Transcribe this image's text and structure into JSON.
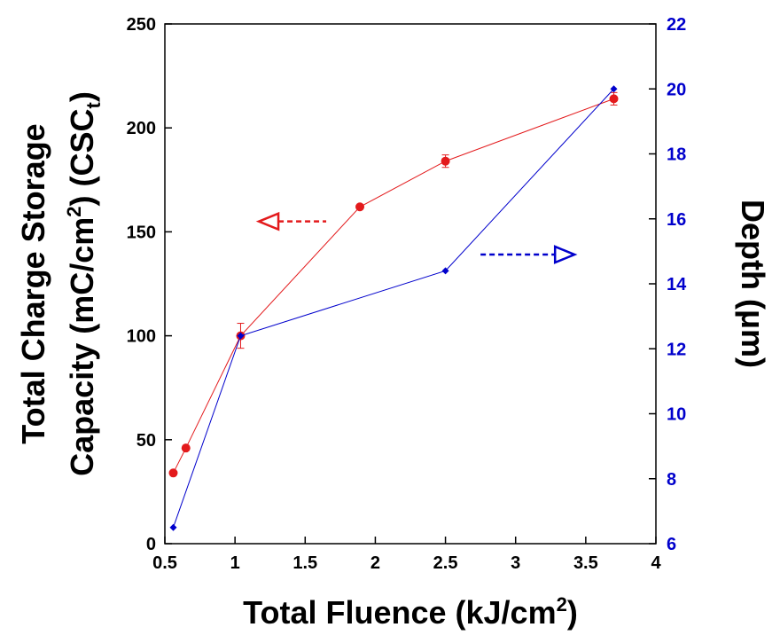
{
  "chart_data": {
    "type": "line",
    "title": "",
    "xlabel": {
      "main": "Total Fluence (kJ/cm",
      "sup": "2",
      "tail": ")"
    },
    "ylabel_left": {
      "line1": "Total Charge Storage",
      "line2_main": "Capacity (mC/cm",
      "line2_sup": "2",
      "line2_mid": ") (CSC",
      "line2_sub": "t",
      "line2_tail": ")"
    },
    "ylabel_right": "Depth (μm)",
    "xlim": [
      0.5,
      4
    ],
    "ylim_left": [
      0,
      250
    ],
    "ylim_right": [
      6,
      22
    ],
    "x_ticks": [
      "0.5",
      "1",
      "1.5",
      "2",
      "2.5",
      "3",
      "3.5",
      "4"
    ],
    "y_left_ticks": [
      "0",
      "50",
      "100",
      "150",
      "200",
      "250"
    ],
    "y_right_ticks": [
      "6",
      "8",
      "10",
      "12",
      "14",
      "16",
      "18",
      "20",
      "22"
    ],
    "grid": false,
    "legend": "none",
    "series": [
      {
        "axis": "left",
        "color": "#e31a1c",
        "marker": "circle",
        "x": [
          0.56,
          0.65,
          1.04,
          1.89,
          2.5,
          3.7
        ],
        "y": [
          34,
          46,
          100,
          162,
          184,
          214
        ],
        "yerr": [
          0,
          0,
          6,
          0,
          3,
          3
        ]
      },
      {
        "axis": "right",
        "color": "#0000cc",
        "marker": "diamond",
        "x": [
          0.56,
          1.04,
          2.5,
          3.7
        ],
        "y": [
          6.5,
          12.4,
          14.4,
          20.0
        ]
      }
    ],
    "arrows": [
      {
        "target_axis": "left",
        "direction": "left",
        "color": "#e31a1c",
        "x_range": [
          1.17,
          1.65
        ],
        "y": 155
      },
      {
        "target_axis": "right",
        "direction": "right",
        "color": "#0000cc",
        "x_range": [
          2.75,
          3.42
        ],
        "y": 14.9
      }
    ]
  }
}
